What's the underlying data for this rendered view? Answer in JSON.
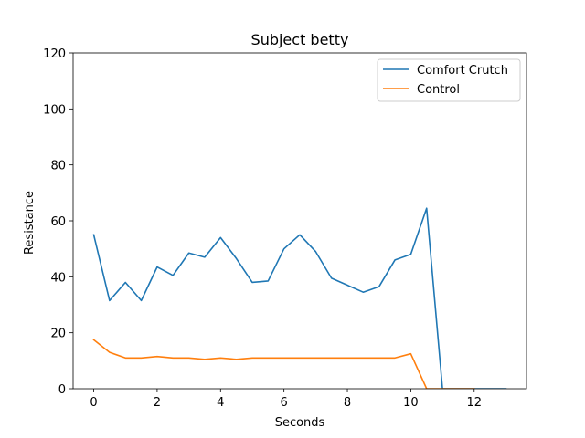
{
  "chart_data": {
    "type": "line",
    "title": "Subject betty",
    "xlabel": "Seconds",
    "ylabel": "Resistance",
    "xlim": [
      -0.65,
      13.65
    ],
    "ylim": [
      0,
      120
    ],
    "xticks": [
      0,
      2,
      4,
      6,
      8,
      10,
      12
    ],
    "yticks": [
      0,
      20,
      40,
      60,
      80,
      100,
      120
    ],
    "grid": false,
    "legend_position": "top-right",
    "x": [
      0,
      0.5,
      1,
      1.5,
      2,
      2.5,
      3,
      3.5,
      4,
      4.5,
      5,
      5.5,
      6,
      6.5,
      7,
      7.5,
      8,
      8.5,
      9,
      9.5,
      10,
      10.5,
      11,
      11.5,
      12,
      12.5,
      13
    ],
    "series": [
      {
        "name": "Comfort Crutch",
        "color": "#1f77b4",
        "values": [
          55,
          31.5,
          38,
          31.5,
          43.5,
          40.5,
          48.5,
          47,
          54,
          46.5,
          38,
          38.5,
          50,
          55,
          49,
          39.5,
          37,
          34.5,
          36.5,
          46,
          48,
          64.5,
          0,
          0,
          0,
          0,
          0
        ]
      },
      {
        "name": "Control",
        "color": "#ff7f0e",
        "values": [
          17.5,
          13,
          11,
          11,
          11.5,
          11,
          11,
          10.5,
          11,
          10.5,
          11,
          11,
          11,
          11,
          11,
          11,
          11,
          11,
          11,
          11,
          12.5,
          0,
          0,
          0,
          0,
          null,
          null
        ]
      }
    ]
  }
}
